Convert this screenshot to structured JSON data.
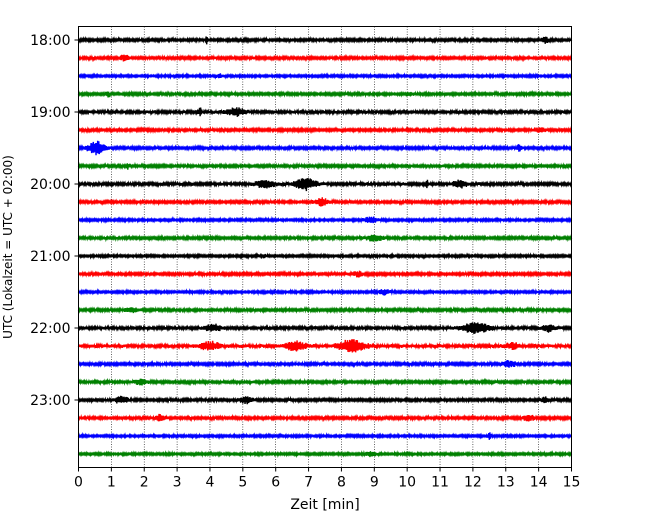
{
  "chart_data": {
    "type": "line",
    "title": "",
    "xlabel": "Zeit  [min]",
    "ylabel": "UTC (Lokalzeit = UTC + 02:00)",
    "xlim": [
      0,
      15
    ],
    "x_ticks": [
      "0",
      "1",
      "2",
      "3",
      "4",
      "5",
      "6",
      "7",
      "8",
      "9",
      "10",
      "11",
      "12",
      "13",
      "14",
      "15"
    ],
    "y_tick_labels": [
      "18:00",
      "19:00",
      "20:00",
      "21:00",
      "22:00",
      "23:00"
    ],
    "grid": "vertical-dotted",
    "trace_interval_minutes": 15,
    "colors": [
      "#000000",
      "#ff0000",
      "#0000ff",
      "#008000"
    ],
    "traces": [
      {
        "start": "18:00",
        "color": "#000000",
        "base_amplitude": 0.35,
        "events": [
          {
            "t": 3.9,
            "amp": 1.0,
            "dur": 0.05
          },
          {
            "t": 14.2,
            "amp": 1.0,
            "dur": 0.1
          }
        ]
      },
      {
        "start": "18:15",
        "color": "#ff0000",
        "base_amplitude": 0.35,
        "events": [
          {
            "t": 1.4,
            "amp": 0.8,
            "dur": 0.15
          }
        ]
      },
      {
        "start": "18:30",
        "color": "#0000ff",
        "base_amplitude": 0.3,
        "events": [
          {
            "t": 4.3,
            "amp": 0.6,
            "dur": 0.1
          }
        ]
      },
      {
        "start": "18:45",
        "color": "#008000",
        "base_amplitude": 0.35,
        "events": [
          {
            "t": 0.9,
            "amp": 1.0,
            "dur": 0.05
          },
          {
            "t": 10.1,
            "amp": 0.6,
            "dur": 0.1
          }
        ]
      },
      {
        "start": "19:00",
        "color": "#000000",
        "base_amplitude": 0.4,
        "events": [
          {
            "t": 3.7,
            "amp": 1.0,
            "dur": 0.05
          },
          {
            "t": 4.8,
            "amp": 1.1,
            "dur": 0.3
          }
        ]
      },
      {
        "start": "19:15",
        "color": "#ff0000",
        "base_amplitude": 0.35,
        "events": [
          {
            "t": 14.0,
            "amp": 0.6,
            "dur": 0.2
          }
        ]
      },
      {
        "start": "19:30",
        "color": "#0000ff",
        "base_amplitude": 0.35,
        "events": [
          {
            "t": 0.55,
            "amp": 2.0,
            "dur": 0.25
          },
          {
            "t": 13.4,
            "amp": 0.8,
            "dur": 0.1
          }
        ]
      },
      {
        "start": "19:45",
        "color": "#008000",
        "base_amplitude": 0.35,
        "events": [
          {
            "t": 1.5,
            "amp": 0.8,
            "dur": 0.05
          }
        ]
      },
      {
        "start": "20:00",
        "color": "#000000",
        "base_amplitude": 0.4,
        "events": [
          {
            "t": 5.7,
            "amp": 1.2,
            "dur": 0.3
          },
          {
            "t": 6.9,
            "amp": 1.8,
            "dur": 0.3
          },
          {
            "t": 10.6,
            "amp": 1.0,
            "dur": 0.05
          },
          {
            "t": 11.6,
            "amp": 1.1,
            "dur": 0.2
          }
        ]
      },
      {
        "start": "20:15",
        "color": "#ff0000",
        "base_amplitude": 0.35,
        "events": [
          {
            "t": 7.4,
            "amp": 1.2,
            "dur": 0.2
          }
        ]
      },
      {
        "start": "20:30",
        "color": "#0000ff",
        "base_amplitude": 0.3,
        "events": [
          {
            "t": 8.9,
            "amp": 0.9,
            "dur": 0.2
          }
        ]
      },
      {
        "start": "20:45",
        "color": "#008000",
        "base_amplitude": 0.35,
        "events": [
          {
            "t": 9.0,
            "amp": 1.0,
            "dur": 0.25
          }
        ]
      },
      {
        "start": "21:00",
        "color": "#000000",
        "base_amplitude": 0.3,
        "events": [
          {
            "t": 5.6,
            "amp": 0.6,
            "dur": 0.1
          }
        ]
      },
      {
        "start": "21:15",
        "color": "#ff0000",
        "base_amplitude": 0.35,
        "events": [
          {
            "t": 8.5,
            "amp": 0.7,
            "dur": 0.15
          }
        ]
      },
      {
        "start": "21:30",
        "color": "#0000ff",
        "base_amplitude": 0.3,
        "events": [
          {
            "t": 9.3,
            "amp": 0.7,
            "dur": 0.2
          }
        ]
      },
      {
        "start": "21:45",
        "color": "#008000",
        "base_amplitude": 0.35,
        "events": [
          {
            "t": 1.6,
            "amp": 0.8,
            "dur": 0.2
          }
        ]
      },
      {
        "start": "22:00",
        "color": "#000000",
        "base_amplitude": 0.4,
        "events": [
          {
            "t": 4.1,
            "amp": 1.0,
            "dur": 0.25
          },
          {
            "t": 12.1,
            "amp": 1.6,
            "dur": 0.4
          },
          {
            "t": 14.3,
            "amp": 1.0,
            "dur": 0.2
          }
        ]
      },
      {
        "start": "22:15",
        "color": "#ff0000",
        "base_amplitude": 0.45,
        "events": [
          {
            "t": 4.0,
            "amp": 1.2,
            "dur": 0.3
          },
          {
            "t": 6.6,
            "amp": 1.3,
            "dur": 0.3
          },
          {
            "t": 8.3,
            "amp": 1.8,
            "dur": 0.4
          },
          {
            "t": 13.2,
            "amp": 0.9,
            "dur": 0.2
          }
        ]
      },
      {
        "start": "22:30",
        "color": "#0000ff",
        "base_amplitude": 0.35,
        "events": [
          {
            "t": 13.1,
            "amp": 0.9,
            "dur": 0.2
          }
        ]
      },
      {
        "start": "22:45",
        "color": "#008000",
        "base_amplitude": 0.35,
        "events": [
          {
            "t": 1.9,
            "amp": 0.8,
            "dur": 0.2
          }
        ]
      },
      {
        "start": "23:00",
        "color": "#000000",
        "base_amplitude": 0.35,
        "events": [
          {
            "t": 1.3,
            "amp": 1.0,
            "dur": 0.2
          },
          {
            "t": 5.1,
            "amp": 1.0,
            "dur": 0.2
          },
          {
            "t": 14.2,
            "amp": 1.0,
            "dur": 0.1
          }
        ]
      },
      {
        "start": "23:15",
        "color": "#ff0000",
        "base_amplitude": 0.35,
        "events": [
          {
            "t": 2.5,
            "amp": 1.0,
            "dur": 0.15
          },
          {
            "t": 13.7,
            "amp": 1.0,
            "dur": 0.15
          }
        ]
      },
      {
        "start": "23:30",
        "color": "#0000ff",
        "base_amplitude": 0.3,
        "events": [
          {
            "t": 12.5,
            "amp": 1.0,
            "dur": 0.05
          }
        ]
      },
      {
        "start": "23:45",
        "color": "#008000",
        "base_amplitude": 0.3,
        "events": [
          {
            "t": 8.9,
            "amp": 0.8,
            "dur": 0.15
          }
        ]
      }
    ]
  }
}
